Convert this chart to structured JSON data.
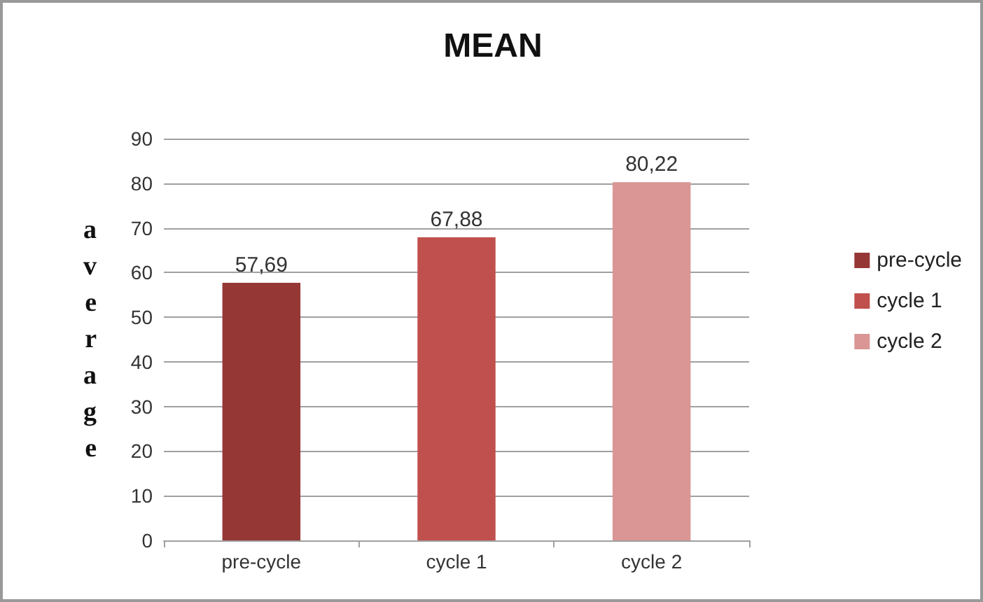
{
  "chart_data": {
    "type": "bar",
    "title": "MEAN",
    "ylabel": "average",
    "categories": [
      "pre-cycle",
      "cycle 1",
      "cycle 2"
    ],
    "series": [
      {
        "name": "pre-cycle",
        "color": "#953735",
        "values": [
          57.69,
          null,
          null
        ],
        "value_labels": [
          "57,69",
          null,
          null
        ]
      },
      {
        "name": "cycle 1",
        "color": "#c0504d",
        "values": [
          null,
          67.88,
          null
        ],
        "value_labels": [
          null,
          "67,88",
          null
        ]
      },
      {
        "name": "cycle 2",
        "color": "#d99694",
        "values": [
          null,
          null,
          80.22
        ],
        "value_labels": [
          null,
          null,
          "80,22"
        ]
      }
    ],
    "ylim": [
      0,
      90
    ],
    "yticks": [
      0,
      10,
      20,
      30,
      40,
      50,
      60,
      70,
      80,
      90
    ],
    "grid": "y",
    "legend": "right"
  }
}
